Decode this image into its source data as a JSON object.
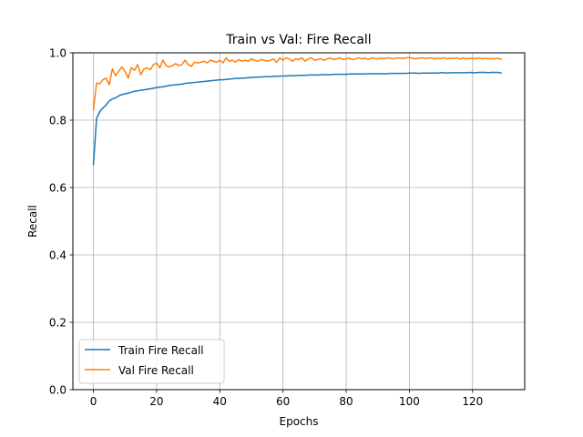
{
  "chart_data": {
    "type": "line",
    "title": "Train vs Val: Fire Recall",
    "xlabel": "Epochs",
    "ylabel": "Recall",
    "xlim": [
      -6.5,
      136.5
    ],
    "ylim": [
      0.0,
      1.0
    ],
    "xticks": [
      0,
      20,
      40,
      60,
      80,
      100,
      120
    ],
    "yticks": [
      0.0,
      0.2,
      0.4,
      0.6,
      0.8,
      1.0
    ],
    "xtick_labels": [
      "0",
      "20",
      "40",
      "60",
      "80",
      "100",
      "120"
    ],
    "ytick_labels": [
      "0.0",
      "0.2",
      "0.4",
      "0.6",
      "0.8",
      "1.0"
    ],
    "grid": true,
    "legend_position": "lower-left",
    "series": [
      {
        "name": "Train Fire Recall",
        "color": "#1f77b4",
        "x": [
          0,
          1,
          2,
          3,
          4,
          5,
          6,
          7,
          8,
          9,
          10,
          11,
          12,
          13,
          14,
          15,
          16,
          17,
          18,
          19,
          20,
          21,
          22,
          23,
          24,
          25,
          26,
          27,
          28,
          29,
          30,
          31,
          32,
          33,
          34,
          35,
          36,
          37,
          38,
          39,
          40,
          41,
          42,
          43,
          44,
          45,
          46,
          47,
          48,
          49,
          50,
          51,
          52,
          53,
          54,
          55,
          56,
          57,
          58,
          59,
          60,
          61,
          62,
          63,
          64,
          65,
          66,
          67,
          68,
          69,
          70,
          71,
          72,
          73,
          74,
          75,
          76,
          77,
          78,
          79,
          80,
          81,
          82,
          83,
          84,
          85,
          86,
          87,
          88,
          89,
          90,
          91,
          92,
          93,
          94,
          95,
          96,
          97,
          98,
          99,
          100,
          101,
          102,
          103,
          104,
          105,
          106,
          107,
          108,
          109,
          110,
          111,
          112,
          113,
          114,
          115,
          116,
          117,
          118,
          119,
          120,
          121,
          122,
          123,
          124,
          125,
          126,
          127,
          128,
          129
        ],
        "y": [
          0.668,
          0.805,
          0.825,
          0.836,
          0.845,
          0.857,
          0.863,
          0.866,
          0.872,
          0.876,
          0.878,
          0.88,
          0.883,
          0.886,
          0.887,
          0.889,
          0.89,
          0.892,
          0.893,
          0.895,
          0.897,
          0.898,
          0.899,
          0.901,
          0.903,
          0.904,
          0.905,
          0.906,
          0.907,
          0.909,
          0.91,
          0.911,
          0.912,
          0.913,
          0.914,
          0.915,
          0.916,
          0.917,
          0.918,
          0.919,
          0.92,
          0.92,
          0.921,
          0.922,
          0.923,
          0.924,
          0.924,
          0.925,
          0.925,
          0.926,
          0.927,
          0.927,
          0.928,
          0.928,
          0.929,
          0.929,
          0.929,
          0.93,
          0.93,
          0.931,
          0.931,
          0.931,
          0.932,
          0.932,
          0.932,
          0.933,
          0.933,
          0.933,
          0.934,
          0.934,
          0.934,
          0.934,
          0.935,
          0.935,
          0.935,
          0.935,
          0.936,
          0.936,
          0.936,
          0.936,
          0.936,
          0.937,
          0.937,
          0.937,
          0.937,
          0.937,
          0.937,
          0.938,
          0.938,
          0.938,
          0.938,
          0.938,
          0.938,
          0.938,
          0.939,
          0.939,
          0.939,
          0.939,
          0.939,
          0.939,
          0.94,
          0.94,
          0.94,
          0.939,
          0.94,
          0.94,
          0.94,
          0.94,
          0.94,
          0.94,
          0.941,
          0.941,
          0.94,
          0.941,
          0.941,
          0.941,
          0.941,
          0.941,
          0.941,
          0.942,
          0.941,
          0.941,
          0.942,
          0.942,
          0.942,
          0.941,
          0.942,
          0.942,
          0.942,
          0.94
        ]
      },
      {
        "name": "Val Fire Recall",
        "color": "#ff7f0e",
        "x": [
          0,
          1,
          2,
          3,
          4,
          5,
          6,
          7,
          8,
          9,
          10,
          11,
          12,
          13,
          14,
          15,
          16,
          17,
          18,
          19,
          20,
          21,
          22,
          23,
          24,
          25,
          26,
          27,
          28,
          29,
          30,
          31,
          32,
          33,
          34,
          35,
          36,
          37,
          38,
          39,
          40,
          41,
          42,
          43,
          44,
          45,
          46,
          47,
          48,
          49,
          50,
          51,
          52,
          53,
          54,
          55,
          56,
          57,
          58,
          59,
          60,
          61,
          62,
          63,
          64,
          65,
          66,
          67,
          68,
          69,
          70,
          71,
          72,
          73,
          74,
          75,
          76,
          77,
          78,
          79,
          80,
          81,
          82,
          83,
          84,
          85,
          86,
          87,
          88,
          89,
          90,
          91,
          92,
          93,
          94,
          95,
          96,
          97,
          98,
          99,
          100,
          101,
          102,
          103,
          104,
          105,
          106,
          107,
          108,
          109,
          110,
          111,
          112,
          113,
          114,
          115,
          116,
          117,
          118,
          119,
          120,
          121,
          122,
          123,
          124,
          125,
          126,
          127,
          128,
          129
        ],
        "y": [
          0.83,
          0.91,
          0.908,
          0.92,
          0.925,
          0.905,
          0.952,
          0.932,
          0.945,
          0.958,
          0.945,
          0.925,
          0.956,
          0.948,
          0.965,
          0.935,
          0.952,
          0.955,
          0.95,
          0.965,
          0.97,
          0.955,
          0.978,
          0.962,
          0.958,
          0.962,
          0.968,
          0.962,
          0.965,
          0.978,
          0.965,
          0.96,
          0.972,
          0.97,
          0.972,
          0.975,
          0.97,
          0.978,
          0.975,
          0.972,
          0.978,
          0.97,
          0.985,
          0.975,
          0.978,
          0.972,
          0.98,
          0.975,
          0.978,
          0.975,
          0.982,
          0.978,
          0.975,
          0.98,
          0.978,
          0.975,
          0.978,
          0.982,
          0.972,
          0.985,
          0.978,
          0.985,
          0.982,
          0.975,
          0.982,
          0.98,
          0.985,
          0.975,
          0.982,
          0.985,
          0.978,
          0.98,
          0.982,
          0.978,
          0.982,
          0.984,
          0.98,
          0.982,
          0.985,
          0.98,
          0.982,
          0.984,
          0.98,
          0.982,
          0.985,
          0.982,
          0.984,
          0.98,
          0.985,
          0.983,
          0.982,
          0.984,
          0.982,
          0.985,
          0.984,
          0.982,
          0.985,
          0.984,
          0.983,
          0.985,
          0.986,
          0.984,
          0.982,
          0.984,
          0.985,
          0.983,
          0.984,
          0.985,
          0.982,
          0.984,
          0.983,
          0.985,
          0.982,
          0.984,
          0.983,
          0.985,
          0.982,
          0.984,
          0.982,
          0.983,
          0.984,
          0.982,
          0.985,
          0.982,
          0.984,
          0.982,
          0.983,
          0.982,
          0.984,
          0.981
        ]
      }
    ]
  }
}
